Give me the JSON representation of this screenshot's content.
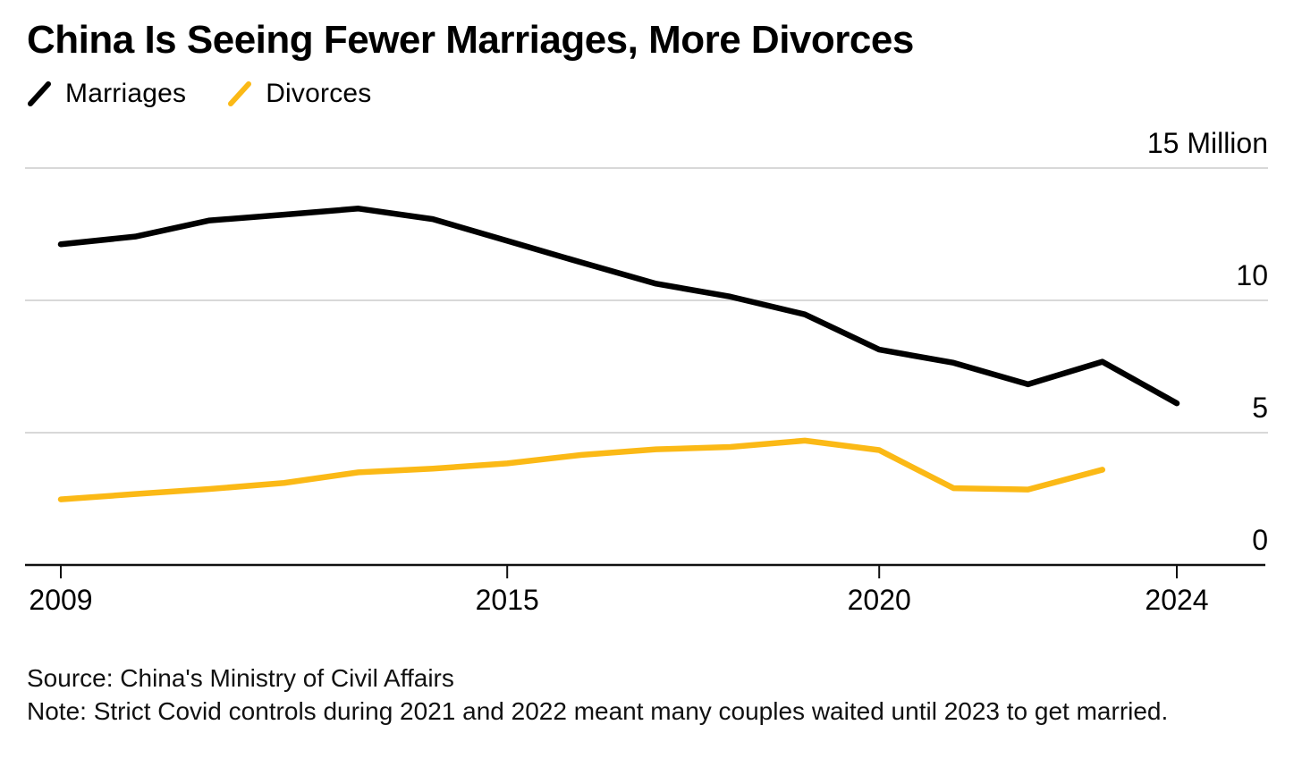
{
  "title": "China Is Seeing Fewer Marriages, More Divorces",
  "legend": [
    {
      "label": "Marriages",
      "color": "#000000"
    },
    {
      "label": "Divorces",
      "color": "#FBB916"
    }
  ],
  "colors": {
    "marriages_line": "#000000",
    "divorces_line": "#FBB916",
    "gridline": "#d8d8d8",
    "axis": "#111111",
    "background": "#ffffff"
  },
  "chart_data": {
    "type": "line",
    "title": "China Is Seeing Fewer Marriages, More Divorces",
    "xlabel": "",
    "ylabel": "Million",
    "x": [
      2009,
      2010,
      2011,
      2012,
      2013,
      2014,
      2015,
      2016,
      2017,
      2018,
      2019,
      2020,
      2021,
      2022,
      2023,
      2024
    ],
    "series": [
      {
        "name": "Marriages",
        "color": "#000000",
        "values": [
          12.12,
          12.41,
          13.02,
          13.24,
          13.47,
          13.07,
          12.25,
          11.43,
          10.63,
          10.14,
          9.47,
          8.14,
          7.64,
          6.83,
          7.68,
          6.11
        ]
      },
      {
        "name": "Divorces",
        "color": "#FBB916",
        "values": [
          2.48,
          2.68,
          2.87,
          3.1,
          3.5,
          3.64,
          3.84,
          4.16,
          4.37,
          4.46,
          4.7,
          4.34,
          2.9,
          2.85,
          3.6,
          null
        ]
      }
    ],
    "ylim": [
      0,
      15
    ],
    "xlim": [
      2008.5,
      2025.2
    ],
    "y_ticks": [
      {
        "value": 15,
        "label": "15 Million"
      },
      {
        "value": 10,
        "label": "10"
      },
      {
        "value": 5,
        "label": "5"
      },
      {
        "value": 0,
        "label": "0"
      }
    ],
    "x_ticks": [
      {
        "value": 2009,
        "label": "2009"
      },
      {
        "value": 2015,
        "label": "2015"
      },
      {
        "value": 2020,
        "label": "2020"
      },
      {
        "value": 2024,
        "label": "2024"
      }
    ],
    "grid": "horizontal",
    "legend_position": "top-left"
  },
  "footer": {
    "source": "Source: China's Ministry of Civil Affairs",
    "note": "Note: Strict Covid controls during 2021 and 2022 meant many couples waited until 2023 to get married."
  }
}
